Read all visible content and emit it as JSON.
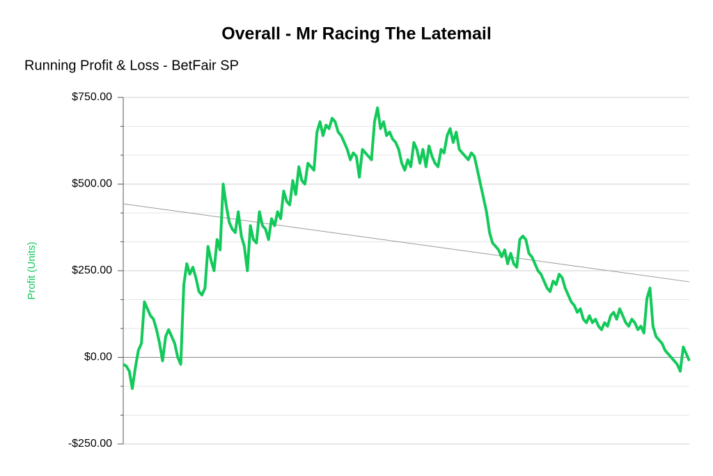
{
  "chart_data": {
    "type": "line",
    "title": "Overall - Mr Racing The Latemail",
    "subtitle": "Running Profit & Loss - BetFair SP",
    "ylabel": "Profit (Units)",
    "ylim": [
      -250,
      750
    ],
    "yticks": [
      {
        "value": -250,
        "label": "-$250.00"
      },
      {
        "value": 0,
        "label": "$0.00"
      },
      {
        "value": 250,
        "label": "$250.00"
      },
      {
        "value": 500,
        "label": "$500.00"
      },
      {
        "value": 750,
        "label": "$750.00"
      }
    ],
    "yminor": [
      -166.67,
      -83.33,
      83.33,
      166.67,
      333.33,
      416.67,
      583.33,
      666.67
    ],
    "grid": true,
    "color": "#12c95a",
    "trendline": [
      443,
      218
    ],
    "values": [
      -20,
      -25,
      -40,
      -90,
      -30,
      20,
      40,
      160,
      140,
      120,
      110,
      80,
      40,
      -10,
      60,
      80,
      60,
      40,
      0,
      -20,
      210,
      270,
      240,
      260,
      230,
      190,
      180,
      200,
      320,
      280,
      250,
      340,
      310,
      500,
      440,
      390,
      370,
      360,
      420,
      350,
      320,
      250,
      380,
      340,
      330,
      420,
      380,
      370,
      340,
      400,
      380,
      420,
      400,
      480,
      450,
      440,
      510,
      470,
      550,
      510,
      500,
      560,
      550,
      540,
      650,
      680,
      640,
      670,
      660,
      690,
      680,
      650,
      640,
      620,
      600,
      570,
      590,
      580,
      520,
      600,
      590,
      580,
      570,
      680,
      720,
      660,
      680,
      640,
      650,
      630,
      620,
      600,
      560,
      540,
      570,
      550,
      620,
      600,
      560,
      600,
      550,
      610,
      580,
      560,
      550,
      600,
      590,
      640,
      660,
      620,
      650,
      600,
      590,
      580,
      570,
      590,
      580,
      540,
      500,
      460,
      420,
      360,
      330,
      320,
      310,
      290,
      310,
      270,
      300,
      270,
      260,
      340,
      350,
      340,
      300,
      290,
      270,
      250,
      240,
      220,
      200,
      190,
      220,
      210,
      240,
      230,
      200,
      180,
      160,
      150,
      130,
      140,
      110,
      100,
      120,
      100,
      110,
      90,
      80,
      100,
      90,
      120,
      130,
      110,
      140,
      120,
      100,
      90,
      110,
      100,
      80,
      90,
      70,
      170,
      200,
      90,
      60,
      50,
      40,
      20,
      10,
      0,
      -10,
      -20,
      -40,
      30,
      10,
      -10
    ]
  }
}
